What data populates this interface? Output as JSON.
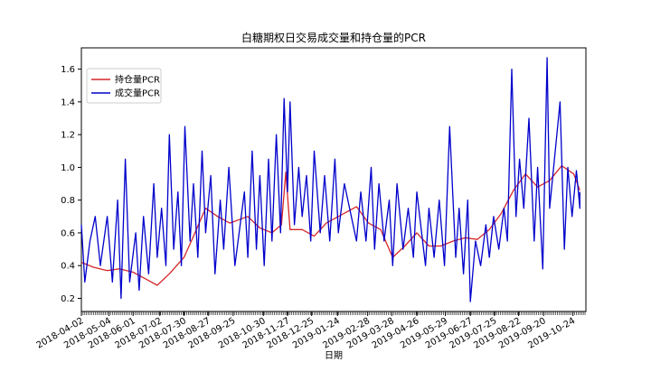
{
  "chart_data": {
    "type": "line",
    "title": "白糖期权日交易成交量和持仓量的PCR",
    "xlabel": "日期",
    "ylabel": "",
    "x_range": [
      "2018-04-02",
      "2019-11-08"
    ],
    "ylim": [
      0.12,
      1.73
    ],
    "yticks": [
      0.2,
      0.4,
      0.6,
      0.8,
      1.0,
      1.2,
      1.4,
      1.6
    ],
    "ytick_labels": [
      "0.2",
      "0.4",
      "0.6",
      "0.8",
      "1.0",
      "1.2",
      "1.4",
      "1.6"
    ],
    "xtick_labels": [
      "2018-04-02",
      "2018-05-04",
      "2018-06-01",
      "2018-07-02",
      "2018-07-30",
      "2018-08-27",
      "2018-09-25",
      "2018-10-30",
      "2018-11-27",
      "2018-12-25",
      "2019-01-24",
      "2019-02-28",
      "2019-03-28",
      "2019-04-26",
      "2019-05-29",
      "2019-06-27",
      "2019-07-25",
      "2019-08-22",
      "2019-09-20",
      "2019-10-24"
    ],
    "grid": false,
    "legend_position": "upper-left",
    "series": [
      {
        "name": "持仓量PCR",
        "color": "#d62728",
        "points": [
          [
            "2018-04-02",
            0.42
          ],
          [
            "2018-04-16",
            0.39
          ],
          [
            "2018-05-02",
            0.37
          ],
          [
            "2018-05-16",
            0.38
          ],
          [
            "2018-06-01",
            0.36
          ],
          [
            "2018-06-15",
            0.32
          ],
          [
            "2018-06-29",
            0.28
          ],
          [
            "2018-07-13",
            0.35
          ],
          [
            "2018-07-30",
            0.45
          ],
          [
            "2018-08-10",
            0.58
          ],
          [
            "2018-08-24",
            0.75
          ],
          [
            "2018-09-07",
            0.7
          ],
          [
            "2018-09-21",
            0.66
          ],
          [
            "2018-10-12",
            0.7
          ],
          [
            "2018-10-26",
            0.63
          ],
          [
            "2018-11-09",
            0.6
          ],
          [
            "2018-11-20",
            0.65
          ],
          [
            "2018-11-25",
            0.97
          ],
          [
            "2018-11-30",
            0.62
          ],
          [
            "2018-12-14",
            0.62
          ],
          [
            "2018-12-28",
            0.58
          ],
          [
            "2019-01-11",
            0.66
          ],
          [
            "2019-01-25",
            0.7
          ],
          [
            "2019-02-15",
            0.76
          ],
          [
            "2019-03-01",
            0.66
          ],
          [
            "2019-03-15",
            0.62
          ],
          [
            "2019-03-29",
            0.45
          ],
          [
            "2019-04-12",
            0.52
          ],
          [
            "2019-04-26",
            0.6
          ],
          [
            "2019-05-10",
            0.52
          ],
          [
            "2019-05-24",
            0.52
          ],
          [
            "2019-06-07",
            0.55
          ],
          [
            "2019-06-21",
            0.57
          ],
          [
            "2019-07-05",
            0.56
          ],
          [
            "2019-07-19",
            0.62
          ],
          [
            "2019-08-02",
            0.72
          ],
          [
            "2019-08-16",
            0.86
          ],
          [
            "2019-08-30",
            0.96
          ],
          [
            "2019-09-13",
            0.88
          ],
          [
            "2019-09-27",
            0.92
          ],
          [
            "2019-10-11",
            1.01
          ],
          [
            "2019-10-25",
            0.96
          ],
          [
            "2019-11-01",
            0.86
          ]
        ]
      },
      {
        "name": "成交量PCR",
        "color": "#0000cc",
        "points": [
          [
            "2018-04-02",
            0.65
          ],
          [
            "2018-04-06",
            0.3
          ],
          [
            "2018-04-12",
            0.55
          ],
          [
            "2018-04-18",
            0.7
          ],
          [
            "2018-04-24",
            0.4
          ],
          [
            "2018-05-02",
            0.7
          ],
          [
            "2018-05-08",
            0.3
          ],
          [
            "2018-05-14",
            0.8
          ],
          [
            "2018-05-18",
            0.2
          ],
          [
            "2018-05-23",
            1.05
          ],
          [
            "2018-05-28",
            0.3
          ],
          [
            "2018-06-04",
            0.6
          ],
          [
            "2018-06-08",
            0.25
          ],
          [
            "2018-06-13",
            0.7
          ],
          [
            "2018-06-19",
            0.35
          ],
          [
            "2018-06-25",
            0.9
          ],
          [
            "2018-06-29",
            0.45
          ],
          [
            "2018-07-04",
            0.75
          ],
          [
            "2018-07-09",
            0.4
          ],
          [
            "2018-07-13",
            1.2
          ],
          [
            "2018-07-18",
            0.5
          ],
          [
            "2018-07-23",
            0.85
          ],
          [
            "2018-07-27",
            0.4
          ],
          [
            "2018-07-31",
            1.25
          ],
          [
            "2018-08-06",
            0.55
          ],
          [
            "2018-08-10",
            0.9
          ],
          [
            "2018-08-15",
            0.45
          ],
          [
            "2018-08-20",
            1.1
          ],
          [
            "2018-08-24",
            0.6
          ],
          [
            "2018-08-30",
            0.95
          ],
          [
            "2018-09-04",
            0.35
          ],
          [
            "2018-09-10",
            0.8
          ],
          [
            "2018-09-14",
            0.5
          ],
          [
            "2018-09-20",
            1.0
          ],
          [
            "2018-09-27",
            0.4
          ],
          [
            "2018-10-08",
            0.85
          ],
          [
            "2018-10-12",
            0.45
          ],
          [
            "2018-10-17",
            1.1
          ],
          [
            "2018-10-22",
            0.5
          ],
          [
            "2018-10-26",
            0.95
          ],
          [
            "2018-10-31",
            0.4
          ],
          [
            "2018-11-05",
            1.05
          ],
          [
            "2018-11-09",
            0.55
          ],
          [
            "2018-11-14",
            1.2
          ],
          [
            "2018-11-19",
            0.6
          ],
          [
            "2018-11-23",
            1.42
          ],
          [
            "2018-11-27",
            0.85
          ],
          [
            "2018-11-30",
            1.4
          ],
          [
            "2018-12-05",
            0.65
          ],
          [
            "2018-12-10",
            1.0
          ],
          [
            "2018-12-14",
            0.7
          ],
          [
            "2018-12-19",
            0.95
          ],
          [
            "2018-12-24",
            0.55
          ],
          [
            "2018-12-28",
            1.1
          ],
          [
            "2019-01-04",
            0.6
          ],
          [
            "2019-01-09",
            0.95
          ],
          [
            "2019-01-15",
            0.55
          ],
          [
            "2019-01-21",
            1.05
          ],
          [
            "2019-01-25",
            0.6
          ],
          [
            "2019-02-01",
            0.9
          ],
          [
            "2019-02-15",
            0.55
          ],
          [
            "2019-02-20",
            0.85
          ],
          [
            "2019-02-26",
            0.55
          ],
          [
            "2019-03-04",
            1.0
          ],
          [
            "2019-03-08",
            0.5
          ],
          [
            "2019-03-13",
            0.9
          ],
          [
            "2019-03-19",
            0.55
          ],
          [
            "2019-03-25",
            0.8
          ],
          [
            "2019-03-29",
            0.4
          ],
          [
            "2019-04-03",
            0.9
          ],
          [
            "2019-04-10",
            0.5
          ],
          [
            "2019-04-16",
            0.75
          ],
          [
            "2019-04-22",
            0.45
          ],
          [
            "2019-04-26",
            0.85
          ],
          [
            "2019-05-06",
            0.4
          ],
          [
            "2019-05-10",
            0.75
          ],
          [
            "2019-05-16",
            0.45
          ],
          [
            "2019-05-22",
            0.8
          ],
          [
            "2019-05-28",
            0.4
          ],
          [
            "2019-06-03",
            1.25
          ],
          [
            "2019-06-10",
            0.45
          ],
          [
            "2019-06-14",
            0.75
          ],
          [
            "2019-06-19",
            0.35
          ],
          [
            "2019-06-24",
            0.8
          ],
          [
            "2019-06-27",
            0.18
          ],
          [
            "2019-07-03",
            0.55
          ],
          [
            "2019-07-09",
            0.4
          ],
          [
            "2019-07-15",
            0.65
          ],
          [
            "2019-07-19",
            0.45
          ],
          [
            "2019-07-24",
            0.7
          ],
          [
            "2019-07-30",
            0.5
          ],
          [
            "2019-08-05",
            0.75
          ],
          [
            "2019-08-09",
            0.55
          ],
          [
            "2019-08-14",
            1.6
          ],
          [
            "2019-08-19",
            0.7
          ],
          [
            "2019-08-23",
            1.05
          ],
          [
            "2019-08-28",
            0.75
          ],
          [
            "2019-09-03",
            1.3
          ],
          [
            "2019-09-09",
            0.55
          ],
          [
            "2019-09-13",
            1.0
          ],
          [
            "2019-09-19",
            0.38
          ],
          [
            "2019-09-24",
            1.67
          ],
          [
            "2019-09-27",
            0.75
          ],
          [
            "2019-10-09",
            1.4
          ],
          [
            "2019-10-14",
            0.5
          ],
          [
            "2019-10-18",
            1.0
          ],
          [
            "2019-10-23",
            0.7
          ],
          [
            "2019-10-28",
            0.98
          ],
          [
            "2019-11-01",
            0.75
          ],
          [
            "2019-11-01",
            0.85
          ]
        ]
      }
    ]
  }
}
